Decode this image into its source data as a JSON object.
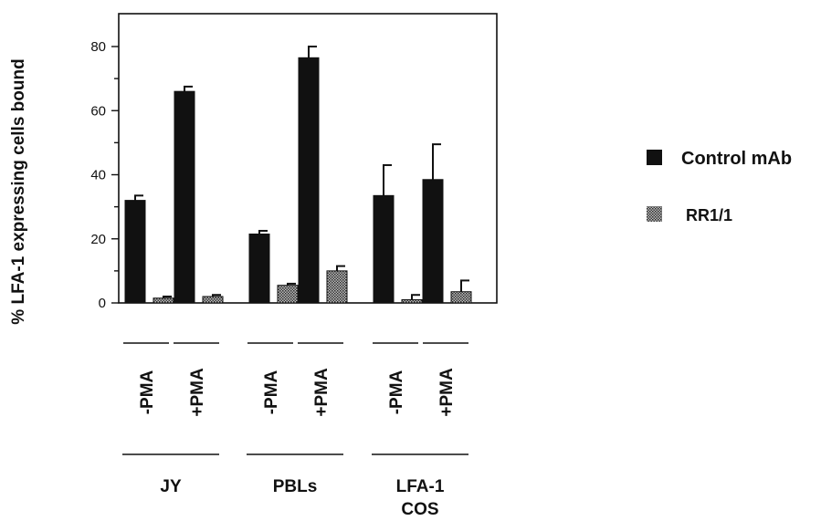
{
  "chart_data": {
    "type": "bar",
    "ylabel": "% LFA-1 expressing cells bound",
    "ylim": [
      0,
      90
    ],
    "yticks": [
      0,
      20,
      40,
      60,
      80
    ],
    "grid": false,
    "legend_position": "right",
    "groups": [
      {
        "label": "JY",
        "categories": [
          {
            "label": "-PMA",
            "control_mab": 32,
            "control_mab_error": 1.5,
            "rr1_1": 1.5,
            "rr1_1_error": 0.5
          },
          {
            "label": "+PMA",
            "control_mab": 66,
            "control_mab_error": 1.5,
            "rr1_1": 2,
            "rr1_1_error": 0.5
          }
        ]
      },
      {
        "label": "PBLs",
        "categories": [
          {
            "label": "-PMA",
            "control_mab": 21.5,
            "control_mab_error": 1,
            "rr1_1": 5.5,
            "rr1_1_error": 0.5
          },
          {
            "label": "+PMA",
            "control_mab": 76.5,
            "control_mab_error": 3.5,
            "rr1_1": 10,
            "rr1_1_error": 1.5
          }
        ]
      },
      {
        "label": "LFA-1\nCOS",
        "categories": [
          {
            "label": "-PMA",
            "control_mab": 33.5,
            "control_mab_error": 9.5,
            "rr1_1": 1,
            "rr1_1_error": 1.5
          },
          {
            "label": "+PMA",
            "control_mab": 38.5,
            "control_mab_error": 11,
            "rr1_1": 3.5,
            "rr1_1_error": 3.5
          }
        ]
      }
    ],
    "series": [
      {
        "key": "control_mab",
        "name": "Control mAb",
        "color": "#111111",
        "pattern": "solid"
      },
      {
        "key": "rr1_1",
        "name": "RR1/1",
        "color": "#666666",
        "pattern": "stipple"
      }
    ]
  }
}
